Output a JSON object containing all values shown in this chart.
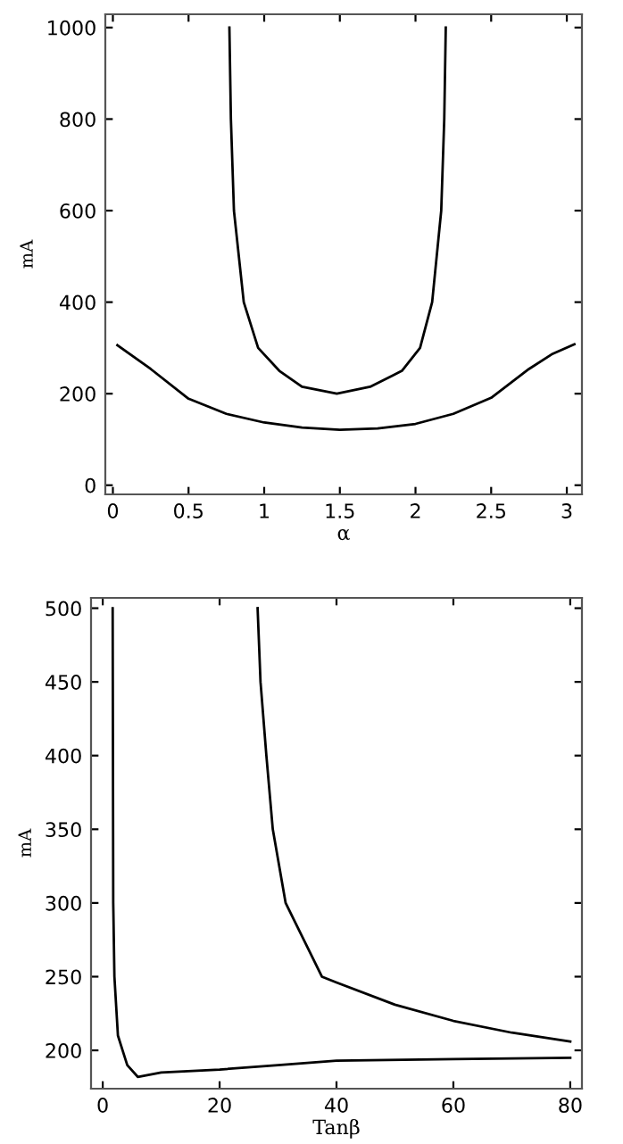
{
  "chart_data": [
    {
      "type": "line",
      "xlabel": "α",
      "ylabel": "mA",
      "xlim": [
        -0.05,
        3.1
      ],
      "ylim": [
        -20,
        1029
      ],
      "xticks": [
        {
          "value": 0,
          "label": "0"
        },
        {
          "value": 0.5,
          "label": "0.5"
        },
        {
          "value": 1,
          "label": "1"
        },
        {
          "value": 1.5,
          "label": "1.5"
        },
        {
          "value": 2,
          "label": "2"
        },
        {
          "value": 2.5,
          "label": "2.5"
        },
        {
          "value": 3,
          "label": "3"
        }
      ],
      "yticks": [
        0,
        200,
        400,
        600,
        800,
        1000
      ],
      "marker": "none",
      "line_style": "solid",
      "series": [
        {
          "color": "#000000",
          "x": [
            0.03,
            0.25,
            0.5,
            0.75,
            1.0,
            1.25,
            1.5,
            1.75,
            2.0,
            2.25,
            2.5,
            2.75,
            2.9,
            3.05
          ],
          "values": [
            306,
            254,
            189,
            156,
            137,
            126,
            121,
            124,
            134,
            156,
            191,
            254,
            286,
            308
          ]
        },
        {
          "color": "#000000",
          "x": [
            0.77,
            0.78,
            0.8,
            0.865,
            0.96,
            1.1,
            1.25,
            1.48,
            1.7,
            1.85,
            1.91,
            2.03,
            2.11,
            2.17,
            2.19,
            2.2
          ],
          "values": [
            1000,
            800,
            600,
            400,
            300,
            250,
            215,
            200,
            215,
            240,
            250,
            300,
            400,
            600,
            800,
            1000
          ]
        }
      ]
    },
    {
      "type": "line",
      "xlabel": "Tanβ",
      "ylabel": "mA",
      "xlim": [
        -2,
        82
      ],
      "ylim": [
        174,
        507
      ],
      "xticks": [
        0,
        20,
        40,
        60,
        80
      ],
      "yticks": [
        200,
        250,
        300,
        350,
        400,
        450,
        500
      ],
      "marker": "none",
      "line_style": "solid",
      "series": [
        {
          "color": "#000000",
          "x": [
            1.7,
            1.8,
            2.0,
            2.6,
            3.4,
            4.2,
            6,
            10,
            20,
            30,
            40,
            60,
            80
          ],
          "values": [
            500,
            300,
            250,
            210,
            200,
            190,
            182,
            185,
            187,
            190,
            193,
            194,
            195
          ]
        },
        {
          "color": "#000000",
          "x": [
            26.5,
            27,
            28,
            29.1,
            31.3,
            37.5,
            40,
            50,
            60,
            70,
            80
          ],
          "values": [
            500,
            450,
            400,
            350,
            300,
            250,
            246,
            231,
            220,
            212,
            206
          ]
        }
      ]
    }
  ]
}
